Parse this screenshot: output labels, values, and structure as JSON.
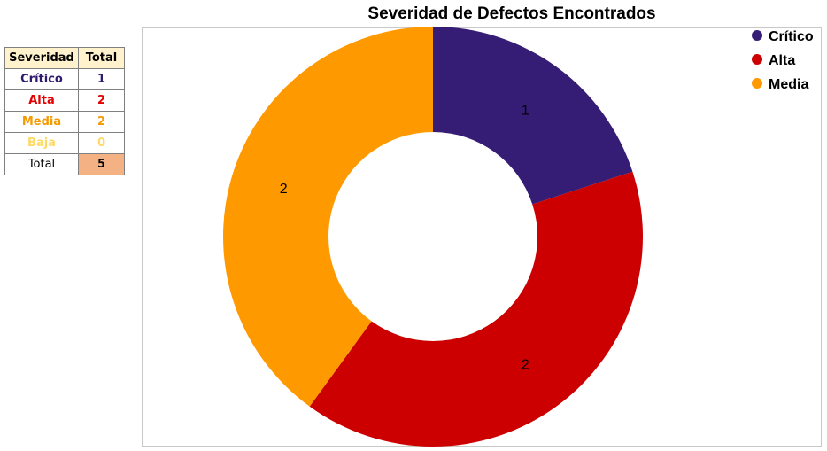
{
  "table": {
    "headers": [
      "Severidad",
      "Total"
    ],
    "rows": [
      {
        "label": "Crítico",
        "value": "1",
        "color": "#2e1a6e"
      },
      {
        "label": "Alta",
        "value": "2",
        "color": "#e00000"
      },
      {
        "label": "Media",
        "value": "2",
        "color": "#f59a00"
      },
      {
        "label": "Baja",
        "value": "0",
        "color": "#ffd966"
      }
    ],
    "total_label": "Total",
    "total_value": "5",
    "total_fill": "#f4b183"
  },
  "chart_data": {
    "type": "pie",
    "variant": "donut",
    "title": "Severidad de Defectos Encontrados",
    "categories": [
      "Crítico",
      "Alta",
      "Media"
    ],
    "values": [
      1,
      2,
      2
    ],
    "colors": [
      "#351c75",
      "#cc0000",
      "#ff9900"
    ],
    "data_labels": [
      "1",
      "2",
      "2"
    ],
    "legend_position": "top-right"
  }
}
